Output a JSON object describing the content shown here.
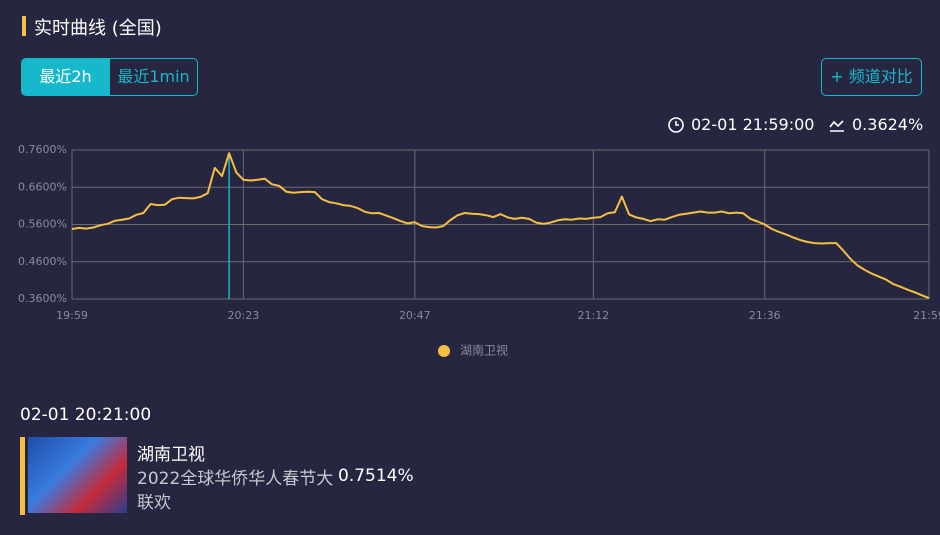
{
  "header": {
    "title": "实时曲线 (全国)"
  },
  "buttons": {
    "range_2h": "最近2h",
    "range_1min": "最近1min",
    "compare": "+ 频道对比"
  },
  "status": {
    "time": "02-01 21:59:00",
    "value": "0.3624%"
  },
  "chart_data": {
    "type": "line",
    "categories": [
      "19:59",
      null,
      null,
      null,
      null,
      null,
      null,
      null,
      null,
      null,
      null,
      null,
      null,
      null,
      null,
      null,
      null,
      null,
      null,
      null,
      null,
      null,
      null,
      null,
      "20:23",
      null,
      null,
      null,
      null,
      null,
      null,
      null,
      null,
      null,
      null,
      null,
      null,
      null,
      null,
      null,
      null,
      null,
      null,
      null,
      null,
      null,
      null,
      null,
      "20:47",
      null,
      null,
      null,
      null,
      null,
      null,
      null,
      null,
      null,
      null,
      null,
      null,
      null,
      null,
      null,
      null,
      null,
      null,
      null,
      null,
      null,
      null,
      null,
      null,
      "21:12",
      null,
      null,
      null,
      null,
      null,
      null,
      null,
      null,
      null,
      null,
      null,
      null,
      null,
      null,
      null,
      null,
      null,
      null,
      null,
      null,
      null,
      null,
      null,
      "21:36",
      null,
      null,
      null,
      null,
      null,
      null,
      null,
      null,
      null,
      null,
      null,
      null,
      null,
      null,
      null,
      null,
      null,
      null,
      null,
      null,
      null,
      null,
      "21:59"
    ],
    "series": [
      {
        "name": "湖南卫视",
        "color": "#f5bf42",
        "values": [
          0.548,
          0.551,
          0.549,
          0.552,
          0.558,
          0.562,
          0.57,
          0.573,
          0.576,
          0.586,
          0.591,
          0.615,
          0.612,
          0.613,
          0.628,
          0.632,
          0.631,
          0.63,
          0.634,
          0.644,
          0.712,
          0.69,
          0.7514,
          0.7,
          0.68,
          0.678,
          0.68,
          0.683,
          0.668,
          0.664,
          0.648,
          0.645,
          0.647,
          0.648,
          0.647,
          0.628,
          0.62,
          0.617,
          0.612,
          0.61,
          0.604,
          0.594,
          0.59,
          0.591,
          0.584,
          0.577,
          0.569,
          0.563,
          0.566,
          0.556,
          0.553,
          0.552,
          0.556,
          0.572,
          0.585,
          0.591,
          0.589,
          0.588,
          0.585,
          0.58,
          0.588,
          0.579,
          0.575,
          0.578,
          0.575,
          0.565,
          0.562,
          0.565,
          0.571,
          0.574,
          0.573,
          0.576,
          0.575,
          0.578,
          0.58,
          0.59,
          0.593,
          0.635,
          0.587,
          0.579,
          0.575,
          0.569,
          0.574,
          0.573,
          0.58,
          0.586,
          0.589,
          0.592,
          0.595,
          0.592,
          0.592,
          0.595,
          0.59,
          0.592,
          0.59,
          0.575,
          0.568,
          0.56,
          0.548,
          0.54,
          0.533,
          0.525,
          0.518,
          0.513,
          0.51,
          0.509,
          0.51,
          0.51,
          0.49,
          0.468,
          0.45,
          0.438,
          0.428,
          0.42,
          0.412,
          0.4,
          0.393,
          0.385,
          0.378,
          0.37,
          0.3624
        ]
      }
    ],
    "ylim": [
      0.36,
      0.76
    ],
    "yticks": [
      {
        "value": 0.36,
        "label": "0.3600%"
      },
      {
        "value": 0.46,
        "label": "0.4600%"
      },
      {
        "value": 0.56,
        "label": "0.5600%"
      },
      {
        "value": 0.66,
        "label": "0.6600%"
      },
      {
        "value": 0.76,
        "label": "0.7600%"
      }
    ],
    "grid": true,
    "legend": "bottom"
  },
  "program": {
    "time": "02-01 20:21:00",
    "channel": "湖南卫视",
    "show": "2022全球华侨华人春节大联欢",
    "rating": "0.7514%"
  }
}
